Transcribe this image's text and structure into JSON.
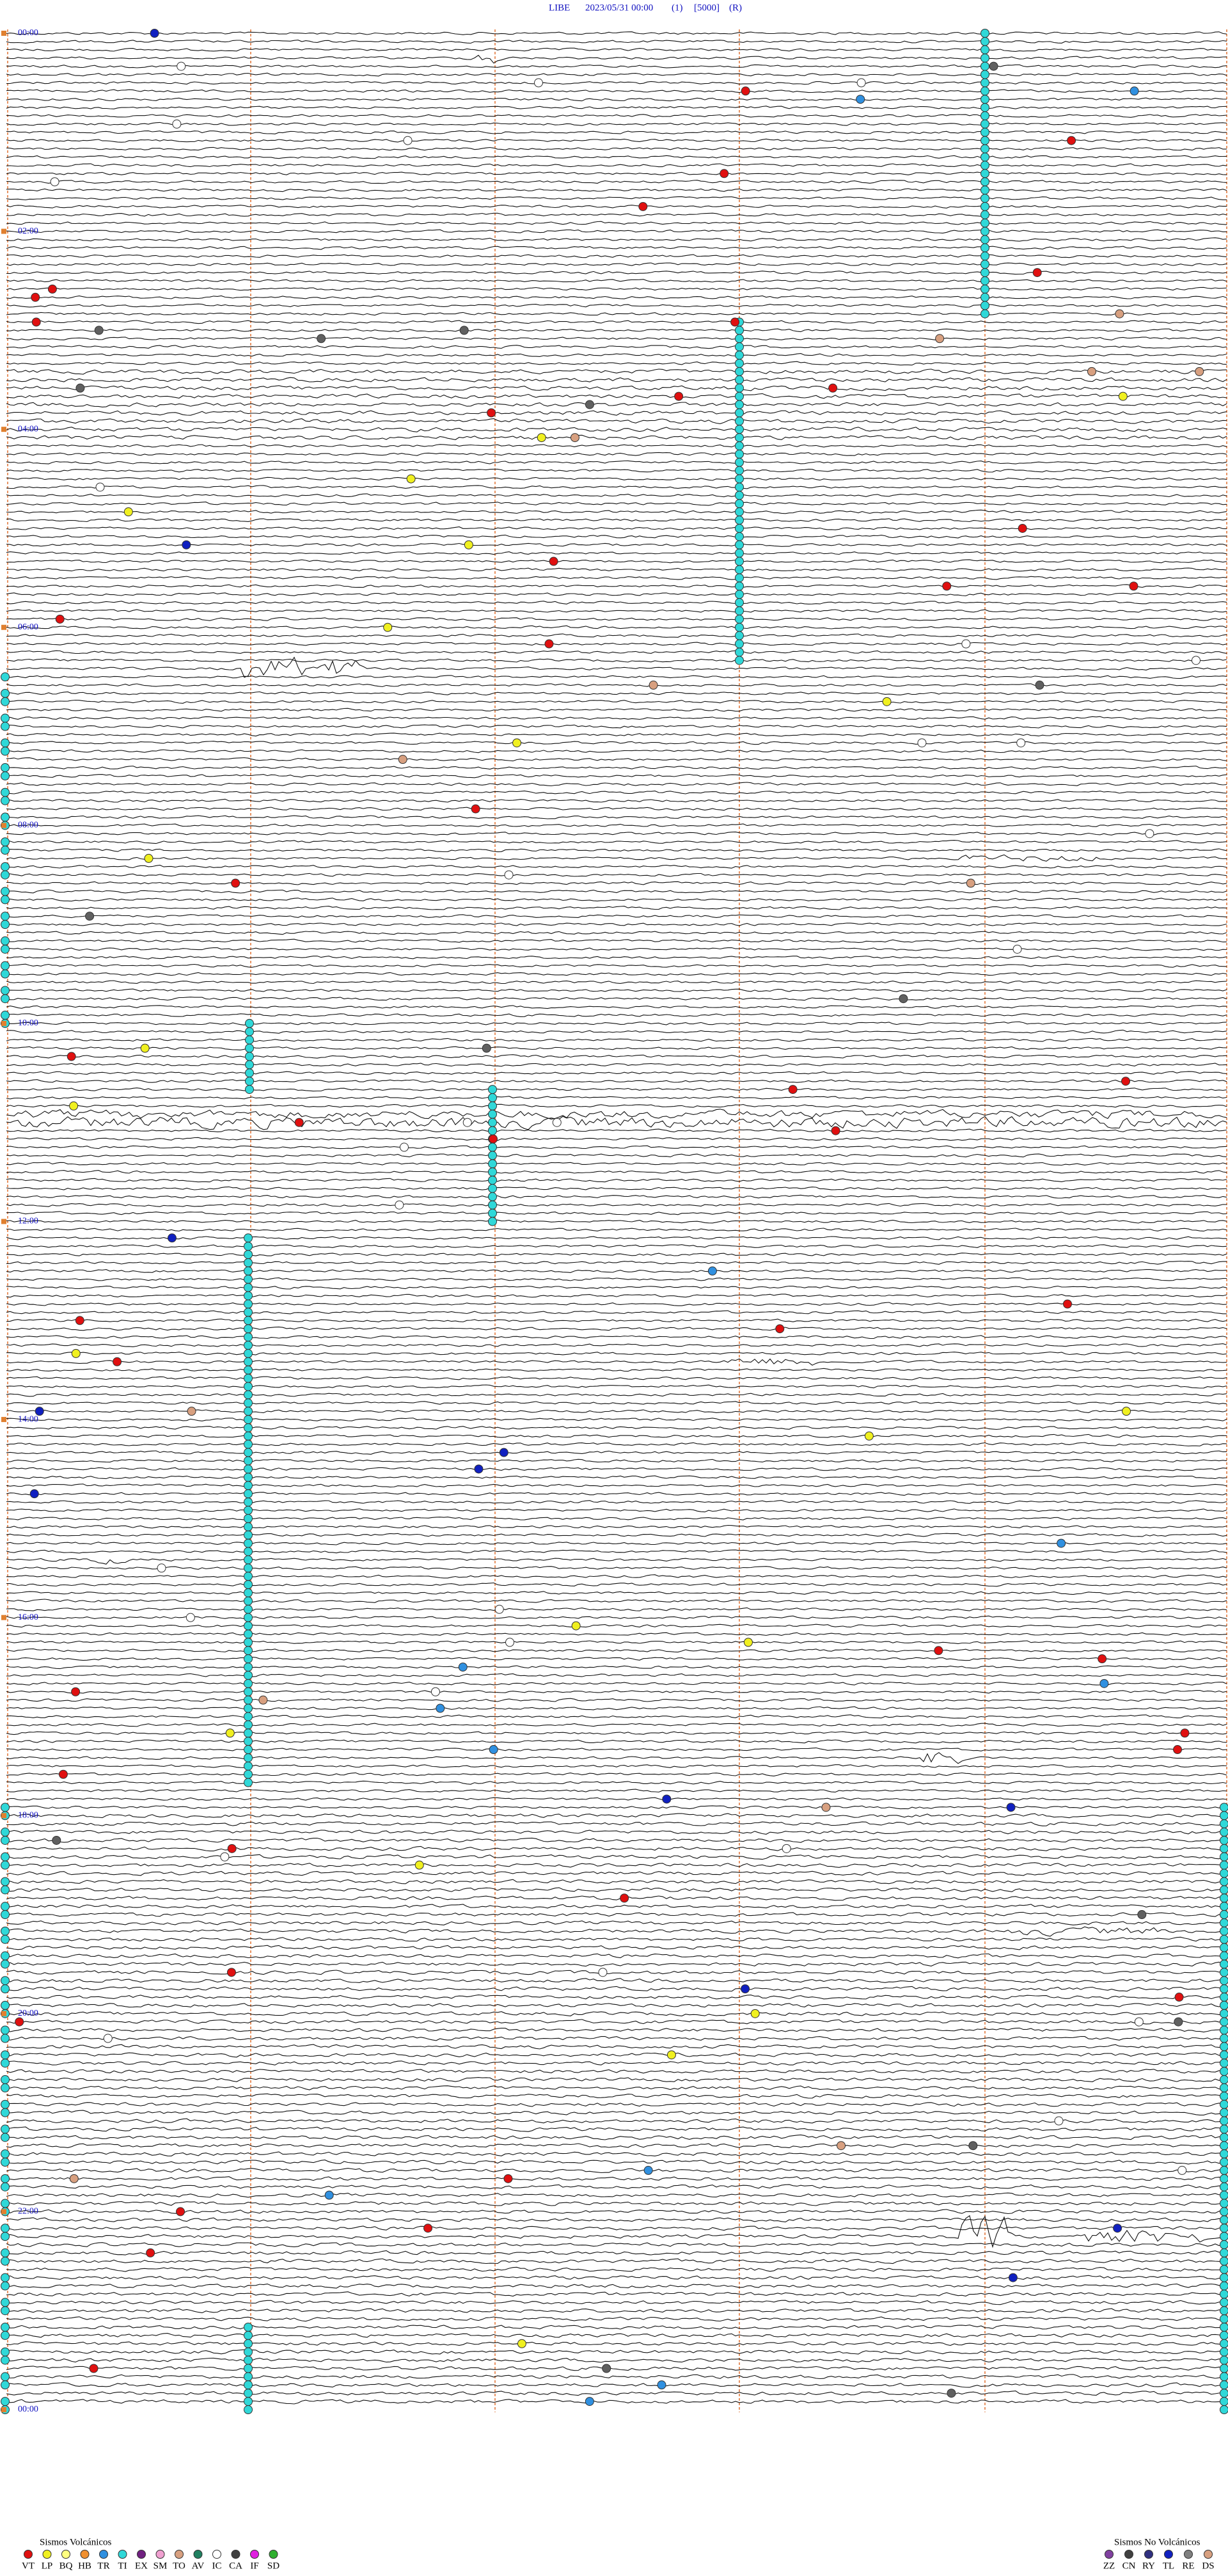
{
  "header": {
    "station": "LIBE",
    "datetime": "2023/05/31 00:00",
    "channel": "(1)",
    "scale": "[5000]",
    "mode": "(R)"
  },
  "hour_labels": [
    "00:00",
    "02:00",
    "04:00",
    "06:00",
    "08:00",
    "10:00",
    "12:00",
    "14:00",
    "16:00",
    "18:00",
    "20:00",
    "22:00",
    "00:00"
  ],
  "legend": {
    "volcanic": {
      "title": "Sismos Volcánicos",
      "codes": [
        "VT",
        "LP",
        "BQ",
        "HB",
        "TR",
        "TI",
        "EX",
        "SM",
        "TO",
        "AV",
        "IC",
        "CA",
        "IF",
        "SD"
      ]
    },
    "non_volcanic": {
      "title": "Sismos No Volcánicos",
      "codes": [
        "ZZ",
        "CN",
        "RY",
        "TL",
        "RE",
        "DS"
      ]
    }
  }
}
